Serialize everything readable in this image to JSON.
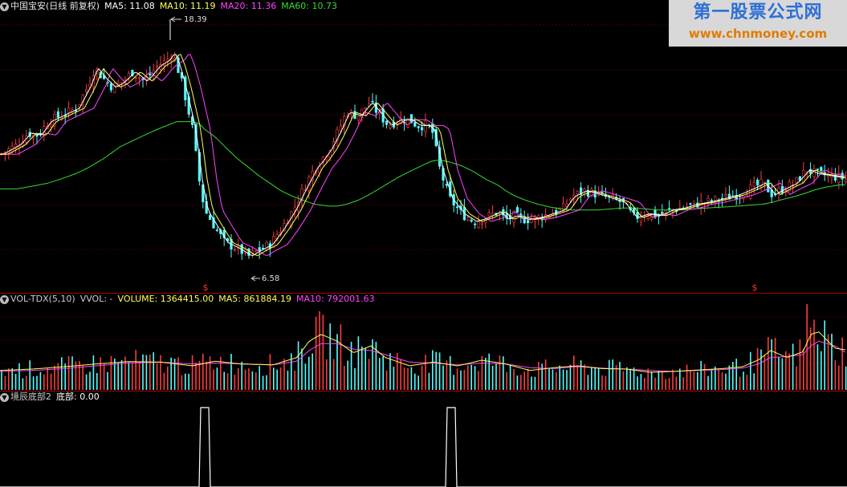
{
  "header1": {
    "name": "中国宝安(日线 前复权)",
    "ma5": "MA5: 11.08",
    "ma10": "MA10: 11.19",
    "ma20": "MA20: 11.36",
    "ma60": "MA60: 10.73"
  },
  "header2": {
    "name": "VOL-TDX(5,10)",
    "vvol": "VVOL: -",
    "volume": "VOLUME: 1364415.00",
    "ma5": "MA5: 861884.19",
    "ma10": "MA10: 792001.63"
  },
  "header3": {
    "name": "境辰底部2",
    "value": "底部: 0.00"
  },
  "annotations": {
    "high": "18.39",
    "low": "6.58",
    "signal": "$"
  },
  "watermark": {
    "line1": "第一股票公式网",
    "line2": "www.chnmoney.com"
  },
  "colors": {
    "up": "#ff3c3c",
    "down": "#54ffff",
    "ma5": "#ffffff",
    "ma10": "#ffff55",
    "ma20": "#ff44ff",
    "ma60": "#33dd33",
    "grid": "#7a0000",
    "text": "#cccccc"
  },
  "chart_data": [
    {
      "type": "candlestick",
      "title": "中国宝安(日线 前复权)",
      "ylim": [
        5.5,
        19.5
      ],
      "x": [
        0,
        22,
        35,
        48,
        60,
        75,
        95,
        110,
        118,
        130,
        140,
        150,
        165,
        180,
        196,
        208,
        214,
        220,
        228,
        240,
        248,
        255,
        268,
        280,
        295,
        310,
        322,
        336,
        350,
        365,
        378,
        392,
        400,
        410,
        420,
        432,
        446,
        460,
        472,
        484,
        496,
        510,
        520,
        530,
        538,
        548,
        560,
        575,
        590,
        605,
        620,
        630,
        640,
        655,
        670,
        685,
        700,
        712,
        728,
        745,
        760,
        775,
        790,
        805,
        820,
        835,
        850,
        865,
        880,
        900,
        918,
        935,
        950,
        962,
        975,
        990,
        1005,
        1015,
        1030,
        1045,
        1055
      ],
      "close": [
        12.3,
        12.8,
        13.4,
        13.3,
        14.0,
        14.3,
        14.7,
        15.9,
        16.8,
        16.2,
        15.8,
        16.0,
        16.6,
        16.1,
        16.9,
        17.2,
        17.6,
        17.0,
        15.8,
        13.6,
        11.0,
        9.4,
        8.5,
        7.7,
        7.4,
        7.0,
        7.3,
        7.6,
        8.4,
        9.4,
        10.5,
        11.6,
        12.0,
        12.6,
        13.4,
        14.5,
        14.3,
        15.0,
        14.4,
        13.8,
        14.1,
        14.1,
        13.8,
        13.8,
        13.6,
        11.5,
        10.0,
        9.2,
        8.8,
        9.0,
        9.3,
        8.9,
        9.1,
        8.9,
        9.0,
        9.2,
        9.4,
        10.1,
        10.4,
        10.2,
        10.0,
        9.8,
        9.0,
        9.2,
        9.1,
        9.4,
        9.5,
        9.7,
        9.8,
        10.0,
        10.2,
        10.5,
        10.8,
        10.2,
        10.5,
        10.8,
        11.5,
        11.3,
        11.2,
        11.1,
        11.0
      ],
      "ma5": [
        12.3,
        12.8,
        13.4,
        13.3,
        14.0,
        14.3,
        14.7,
        15.9,
        16.8,
        16.2,
        15.8,
        16.0,
        16.6,
        16.1,
        16.9,
        17.2,
        17.6,
        17.0,
        15.8,
        13.6,
        11.0,
        9.4,
        8.5,
        7.7,
        7.4,
        7.0,
        7.3,
        7.6,
        8.4,
        9.4,
        10.5,
        11.6,
        12.0,
        12.6,
        13.4,
        14.5,
        14.3,
        15.0,
        14.4,
        13.8,
        14.1,
        14.1,
        13.8,
        13.8,
        13.6,
        11.5,
        10.0,
        9.2,
        8.8,
        9.0,
        9.3,
        8.9,
        9.1,
        8.9,
        9.0,
        9.2,
        9.4,
        10.1,
        10.4,
        10.2,
        10.0,
        9.8,
        9.0,
        9.2,
        9.1,
        9.4,
        9.5,
        9.7,
        9.8,
        10.0,
        10.2,
        10.5,
        10.8,
        10.2,
        10.5,
        10.8,
        11.5,
        11.3,
        11.2,
        11.1,
        11.08
      ],
      "ma60": [
        10.5,
        10.5,
        10.6,
        10.7,
        10.8,
        11.0,
        11.3,
        11.6,
        11.8,
        12.1,
        12.4,
        12.7,
        13.0,
        13.3,
        13.6,
        13.8,
        13.9,
        14.0,
        14.0,
        14.0,
        13.9,
        13.6,
        13.2,
        12.7,
        12.1,
        11.6,
        11.2,
        10.8,
        10.4,
        10.1,
        9.9,
        9.7,
        9.65,
        9.6,
        9.6,
        9.7,
        9.9,
        10.2,
        10.5,
        10.8,
        11.1,
        11.4,
        11.6,
        11.8,
        11.95,
        12.0,
        11.9,
        11.7,
        11.4,
        11.0,
        10.7,
        10.4,
        10.15,
        9.9,
        9.7,
        9.55,
        9.45,
        9.4,
        9.4,
        9.4,
        9.45,
        9.5,
        9.5,
        9.45,
        9.4,
        9.4,
        9.4,
        9.45,
        9.5,
        9.55,
        9.6,
        9.65,
        9.7,
        9.8,
        9.95,
        10.1,
        10.3,
        10.45,
        10.6,
        10.7,
        10.73
      ],
      "high_label": 18.39,
      "low_label": 6.58,
      "signal_x": [
        256,
        940
      ]
    },
    {
      "type": "bar",
      "title": "VOL-TDX(5,10)",
      "ylim": [
        0,
        1800000
      ],
      "x": [
        0,
        40,
        80,
        120,
        160,
        200,
        240,
        268,
        300,
        340,
        370,
        385,
        400,
        420,
        440,
        462,
        480,
        510,
        540,
        570,
        600,
        630,
        660,
        690,
        720,
        750,
        780,
        810,
        840,
        870,
        900,
        925,
        945,
        960,
        980,
        1000,
        1010,
        1020,
        1040,
        1055
      ],
      "ma5": [
        420000,
        450000,
        500000,
        560000,
        610000,
        600000,
        520000,
        620000,
        560000,
        540000,
        700000,
        1050000,
        1200000,
        1050000,
        800000,
        950000,
        700000,
        520000,
        600000,
        520000,
        640000,
        560000,
        420000,
        480000,
        520000,
        460000,
        450000,
        380000,
        400000,
        430000,
        460000,
        500000,
        650000,
        850000,
        700000,
        820000,
        1200000,
        1250000,
        900000,
        860000
      ],
      "ma10": [
        400000,
        420000,
        460000,
        520000,
        580000,
        600000,
        560000,
        580000,
        560000,
        540000,
        620000,
        850000,
        1000000,
        1000000,
        880000,
        850000,
        760000,
        600000,
        580000,
        540000,
        580000,
        560000,
        480000,
        460000,
        500000,
        470000,
        450000,
        420000,
        400000,
        420000,
        440000,
        470000,
        560000,
        700000,
        720000,
        760000,
        950000,
        1050000,
        950000,
        790000
      ],
      "volume": [
        1364415.0
      ],
      "peak_x": 1005,
      "peak_volume": 1850000
    },
    {
      "type": "line",
      "title": "境辰底部2",
      "x": [
        0,
        248,
        250,
        255,
        260,
        262,
        555,
        557,
        562,
        567,
        569,
        1055
      ],
      "values": [
        0,
        0,
        1,
        1,
        1,
        0,
        0,
        1,
        1,
        1,
        0,
        0
      ],
      "ylim": [
        0,
        1
      ]
    }
  ]
}
